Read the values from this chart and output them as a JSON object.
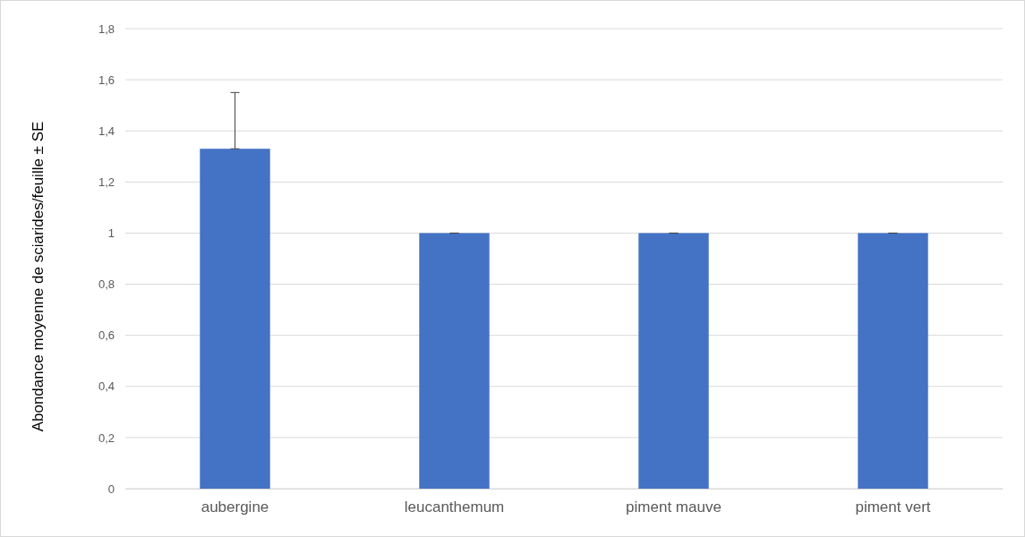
{
  "chart_data": {
    "type": "bar",
    "ylabel": "Abondance moyenne de sciarides/feuille ± SE",
    "categories": [
      "aubergine",
      "leucanthemum",
      "piment mauve",
      "piment vert"
    ],
    "values": [
      1.33,
      1,
      1,
      1
    ],
    "errors": [
      [
        1.33,
        1.55
      ],
      [
        1,
        1
      ],
      [
        1,
        1
      ],
      [
        1,
        1
      ]
    ],
    "color": "#4472c4",
    "ylim": [
      0,
      1.8
    ],
    "yticks": [
      {
        "value": 0,
        "label": "0"
      },
      {
        "value": 0.2,
        "label": "0,2"
      },
      {
        "value": 0.4,
        "label": "0,4"
      },
      {
        "value": 0.6,
        "label": "0,6"
      },
      {
        "value": 0.8,
        "label": "0,8"
      },
      {
        "value": 1,
        "label": "1"
      },
      {
        "value": 1.2,
        "label": "1,2"
      },
      {
        "value": 1.4,
        "label": "1,4"
      },
      {
        "value": 1.6,
        "label": "1,6"
      },
      {
        "value": 1.8,
        "label": "1,8"
      }
    ],
    "grid": "y"
  }
}
